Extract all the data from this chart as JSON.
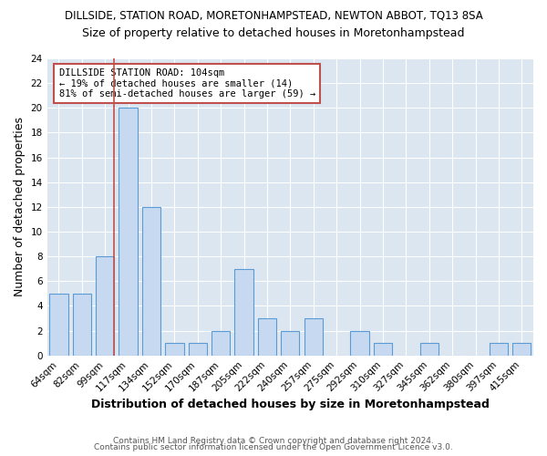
{
  "title": "DILLSIDE, STATION ROAD, MORETONHAMPSTEAD, NEWTON ABBOT, TQ13 8SA",
  "subtitle": "Size of property relative to detached houses in Moretonhampstead",
  "xlabel": "Distribution of detached houses by size in Moretonhampstead",
  "ylabel": "Number of detached properties",
  "categories": [
    "64sqm",
    "82sqm",
    "99sqm",
    "117sqm",
    "134sqm",
    "152sqm",
    "170sqm",
    "187sqm",
    "205sqm",
    "222sqm",
    "240sqm",
    "257sqm",
    "275sqm",
    "292sqm",
    "310sqm",
    "327sqm",
    "345sqm",
    "362sqm",
    "380sqm",
    "397sqm",
    "415sqm"
  ],
  "values": [
    5,
    5,
    8,
    20,
    12,
    1,
    1,
    2,
    7,
    3,
    2,
    3,
    0,
    2,
    1,
    0,
    1,
    0,
    0,
    1,
    1
  ],
  "bar_color": "#c6d9f0",
  "bar_edge_color": "#5b9bd5",
  "grid_color": "#ffffff",
  "bg_color": "#dce6f1",
  "fig_bg_color": "#ffffff",
  "vline_color": "#c0504d",
  "vline_x_index": 2,
  "annotation_text": "DILLSIDE STATION ROAD: 104sqm\n← 19% of detached houses are smaller (14)\n81% of semi-detached houses are larger (59) →",
  "annotation_box_edgecolor": "#c0504d",
  "ylim": [
    0,
    24
  ],
  "yticks": [
    0,
    2,
    4,
    6,
    8,
    10,
    12,
    14,
    16,
    18,
    20,
    22,
    24
  ],
  "footer1": "Contains HM Land Registry data © Crown copyright and database right 2024.",
  "footer2": "Contains public sector information licensed under the Open Government Licence v3.0.",
  "title_fontsize": 8.5,
  "subtitle_fontsize": 9,
  "xlabel_fontsize": 9,
  "ylabel_fontsize": 9,
  "tick_fontsize": 7.5,
  "annotation_fontsize": 7.5,
  "footer_fontsize": 6.5
}
